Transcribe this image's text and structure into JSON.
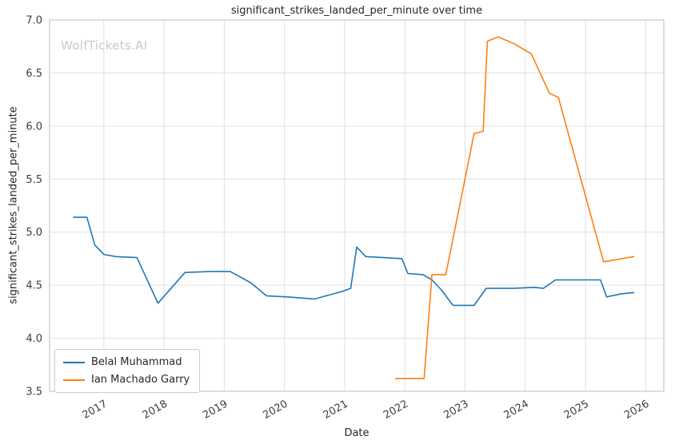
{
  "chart_data": {
    "type": "line",
    "title": "significant_strikes_landed_per_minute over time",
    "xlabel": "Date",
    "ylabel": "significant_strikes_landed_per_minute",
    "watermark": "WolfTickets.AI",
    "xlim": [
      2016.1,
      2026.3
    ],
    "ylim": [
      3.5,
      7.0
    ],
    "x_ticks": [
      2017,
      2018,
      2019,
      2020,
      2021,
      2022,
      2023,
      2024,
      2025,
      2026
    ],
    "y_ticks": [
      3.5,
      4.0,
      4.5,
      5.0,
      5.5,
      6.0,
      6.5,
      7.0
    ],
    "grid": true,
    "legend_position": "lower left",
    "colors": {
      "grid": "#e0e0e0",
      "frame": "#c8c8c8",
      "tick_label": "#3d3d3d"
    },
    "series": [
      {
        "name": "Belal Muhammad",
        "color": "#1f77b4",
        "x": [
          2016.5,
          2016.72,
          2016.85,
          2017.0,
          2017.2,
          2017.55,
          2017.9,
          2018.35,
          2018.8,
          2019.1,
          2019.45,
          2019.7,
          2020.05,
          2020.5,
          2020.95,
          2021.1,
          2021.2,
          2021.35,
          2021.65,
          2021.95,
          2022.05,
          2022.3,
          2022.45,
          2022.6,
          2022.8,
          2023.15,
          2023.35,
          2023.8,
          2024.15,
          2024.3,
          2024.5,
          2024.85,
          2025.25,
          2025.35,
          2025.6,
          2025.8
        ],
        "y": [
          5.14,
          5.14,
          4.88,
          4.79,
          4.77,
          4.76,
          4.33,
          4.62,
          4.63,
          4.63,
          4.52,
          4.4,
          4.39,
          4.37,
          4.44,
          4.47,
          4.86,
          4.77,
          4.76,
          4.75,
          4.61,
          4.6,
          4.55,
          4.46,
          4.31,
          4.31,
          4.47,
          4.47,
          4.48,
          4.47,
          4.55,
          4.55,
          4.55,
          4.39,
          4.42,
          4.43
        ]
      },
      {
        "name": "Ian Machado Garry",
        "color": "#ff7f0e",
        "x": [
          2021.85,
          2022.1,
          2022.32,
          2022.45,
          2022.68,
          2023.15,
          2023.3,
          2023.37,
          2023.55,
          2023.8,
          2024.1,
          2024.4,
          2024.55,
          2025.3,
          2025.8
        ],
        "y": [
          3.62,
          3.62,
          3.62,
          4.6,
          4.6,
          5.93,
          5.95,
          6.8,
          6.84,
          6.78,
          6.68,
          6.31,
          6.27,
          4.72,
          4.77
        ]
      }
    ]
  }
}
